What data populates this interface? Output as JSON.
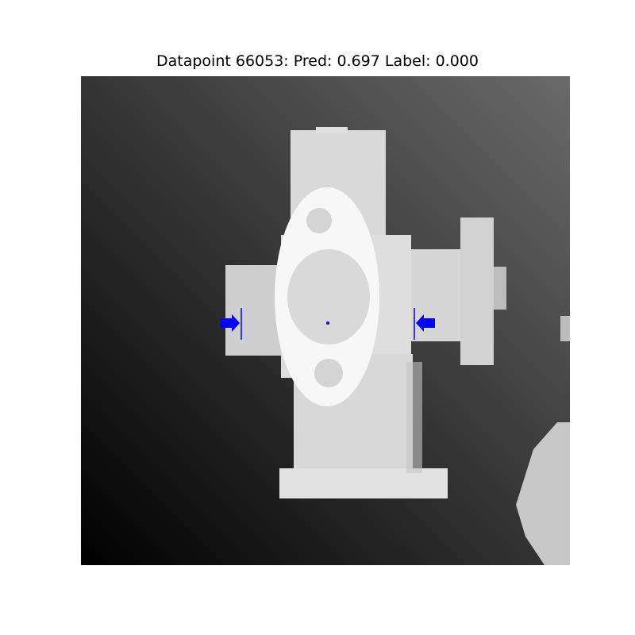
{
  "title": "Datapoint 66053: Pred: 0.697 Label: 0.000",
  "image": {
    "subject": "depth image of grey pipe-fitting object with flange",
    "background_gradient": [
      "#000000",
      "#6a6a6a"
    ],
    "object_color": "#d8d8d8",
    "marker_color": "#0000ff"
  }
}
